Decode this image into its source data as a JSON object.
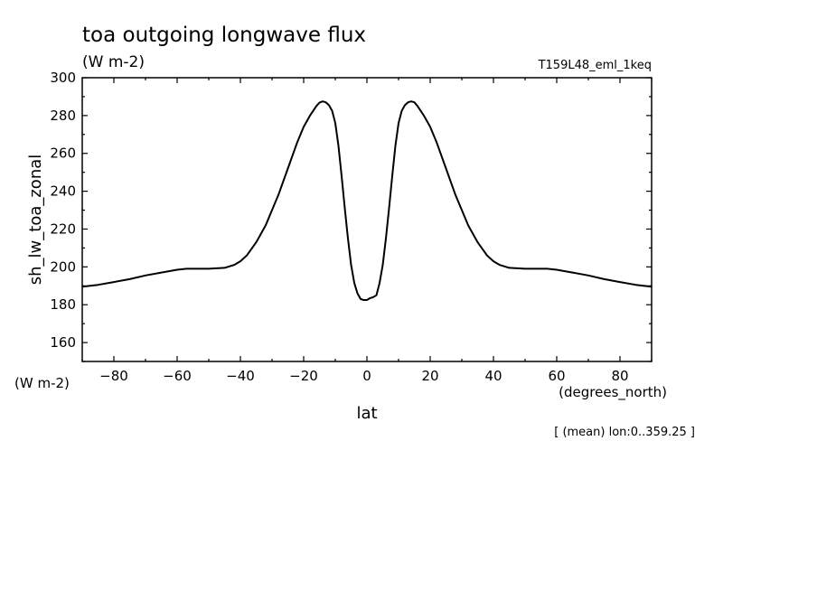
{
  "chart_data": {
    "type": "line",
    "title": "toa outgoing longwave flux",
    "title_units": "(W m-2)",
    "experiment": "T159L48_eml_1keq",
    "ylabel": "sh_lw_toa_zonal",
    "y_units": "(W m-2)",
    "xlabel": "lat",
    "x_units": "(degrees_north)",
    "footnote": "[ (mean) lon:0..359.25 ]",
    "xlim": [
      -90,
      90
    ],
    "ylim": [
      150,
      300
    ],
    "xticks": [
      -80,
      -60,
      -40,
      -20,
      0,
      20,
      40,
      60,
      80
    ],
    "yticks": [
      160,
      180,
      200,
      220,
      240,
      260,
      280,
      300
    ],
    "grid": false,
    "series": [
      {
        "x": [
          -90,
          -85,
          -80,
          -75,
          -70,
          -65,
          -60,
          -57,
          -55,
          -50,
          -45,
          -42,
          -40,
          -38,
          -35,
          -32,
          -30,
          -28,
          -25,
          -22,
          -20,
          -18,
          -16,
          -15,
          -14,
          -13,
          -12,
          -11,
          -10,
          -9,
          -8,
          -7,
          -6,
          -5,
          -4,
          -3,
          -2,
          -1,
          0,
          1,
          2,
          3,
          4,
          5,
          6,
          7,
          8,
          9,
          10,
          11,
          12,
          13,
          14,
          15,
          16,
          18,
          20,
          22,
          25,
          28,
          30,
          32,
          35,
          38,
          40,
          42,
          45,
          50,
          55,
          57,
          60,
          65,
          70,
          75,
          80,
          85,
          90
        ],
        "y": [
          189.5,
          190.5,
          192,
          193.5,
          195.5,
          197,
          198.5,
          199,
          199,
          199,
          199.5,
          201,
          203,
          206,
          213,
          222,
          230,
          238,
          252,
          266,
          274,
          280,
          285,
          286.8,
          287.5,
          287,
          285.5,
          282.5,
          276,
          264,
          248,
          231,
          215,
          201,
          191.5,
          186,
          183,
          182.5,
          182.5,
          183.5,
          184,
          185,
          191.5,
          201,
          215,
          231,
          248,
          264,
          276,
          282.5,
          285.5,
          287,
          287.5,
          287,
          285,
          280,
          274,
          266,
          252,
          238,
          230,
          222,
          213,
          206,
          203,
          201,
          199.5,
          199,
          199,
          199,
          198.5,
          197,
          195.5,
          193.5,
          192,
          190.5,
          189.5
        ]
      }
    ]
  }
}
